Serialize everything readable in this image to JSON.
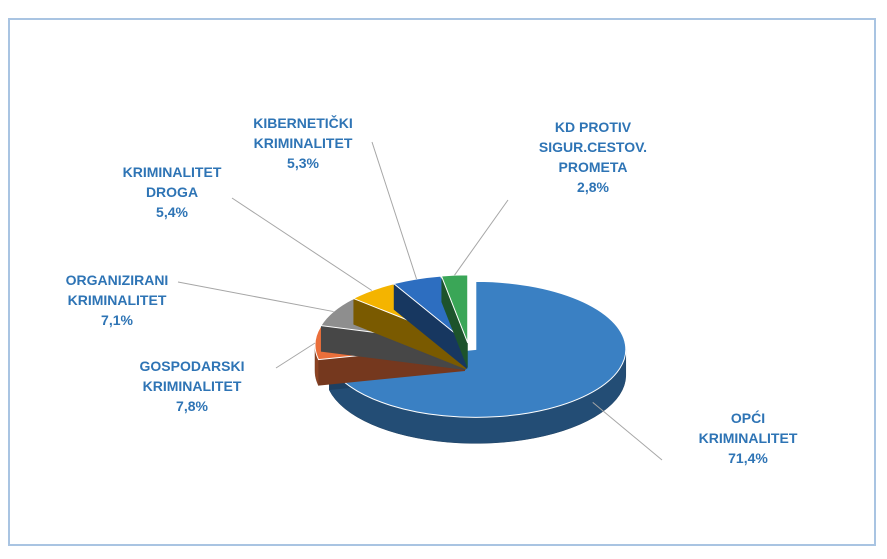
{
  "chart_data": {
    "type": "pie",
    "categories": [
      "OPĆI KRIMINALITET",
      "GOSPODARSKI KRIMINALITET",
      "ORGANIZIRANI KRIMINALITET",
      "KRIMINALITET DROGA",
      "KIBERNETIČKI KRIMINALITET",
      "KD PROTIV SIGUR.CESTOV. PROMETA"
    ],
    "values": [
      71.4,
      7.8,
      7.1,
      5.4,
      5.3,
      2.8
    ],
    "value_labels": [
      "71,4%",
      "7,8%",
      "7,1%",
      "5,4%",
      "5,3%",
      "2,8%"
    ],
    "colors": [
      "#3a80c3",
      "#ea6f3b",
      "#8e8e8e",
      "#f4b400",
      "#2d6ec0",
      "#3aa657"
    ]
  }
}
